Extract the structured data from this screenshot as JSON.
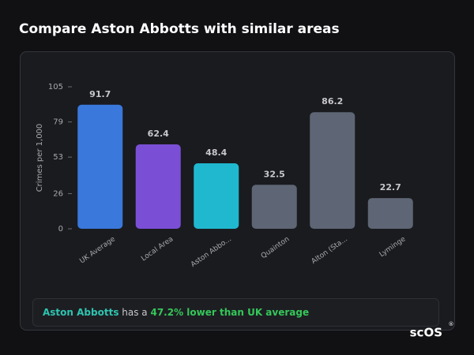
{
  "chart_data": {
    "type": "bar",
    "title": "Compare Aston Abbotts with similar areas",
    "ylabel": "Crimes per 1,000",
    "categories": [
      "UK Average",
      "Local Area",
      "Aston Abbo...",
      "Quainton",
      "Alton (Sta...",
      "Lyminge"
    ],
    "values": [
      91.7,
      62.4,
      48.4,
      32.5,
      86.2,
      22.7
    ],
    "colors": [
      "#3a78dc",
      "#7a4fd6",
      "#20b8cf",
      "#5e6675",
      "#5e6675",
      "#5e6675"
    ],
    "ylim": [
      0,
      105
    ],
    "yticks": [
      0,
      26,
      53,
      79,
      105
    ]
  },
  "summary": {
    "area": "Aston Abbotts",
    "text": " has a ",
    "highlight": "47.2% lower than UK average"
  },
  "brand": "scOS",
  "brand_mark": "®"
}
